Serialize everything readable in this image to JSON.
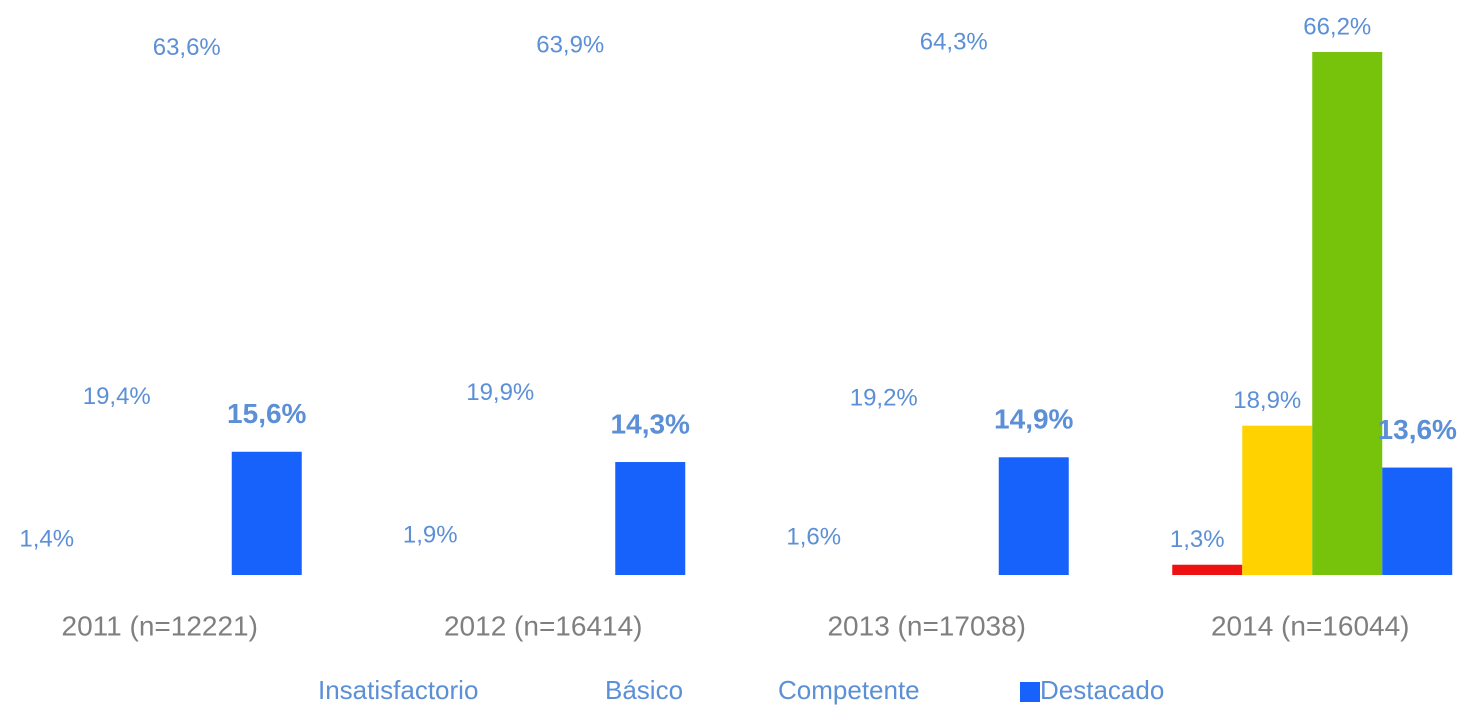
{
  "chart_data": {
    "type": "bar",
    "categories": [
      "2011 (n=12221)",
      "2012 (n=16414)",
      "2013 (n=17038)",
      "2014 (n=16044)"
    ],
    "series": [
      {
        "name": "Insatisfactorio",
        "color": "none",
        "point_colors": [
          "none",
          "none",
          "none",
          "#ee1111"
        ],
        "values": [
          1.4,
          1.9,
          1.6,
          1.3
        ],
        "value_labels": [
          "1,4%",
          "1,9%",
          "1,6%",
          "1,3%"
        ]
      },
      {
        "name": "Básico",
        "color": "none",
        "point_colors": [
          "none",
          "none",
          "none",
          "#ffd200"
        ],
        "values": [
          19.4,
          19.9,
          19.2,
          18.9
        ],
        "value_labels": [
          "19,4%",
          "19,9%",
          "19,2%",
          "18,9%"
        ]
      },
      {
        "name": "Competente",
        "color": "none",
        "point_colors": [
          "none",
          "none",
          "none",
          "#77c20a"
        ],
        "values": [
          63.6,
          63.9,
          64.3,
          66.2
        ],
        "value_labels": [
          "63,6%",
          "63,9%",
          "64,3%",
          "66,2%"
        ]
      },
      {
        "name": "Destacado",
        "color": "#1662fa",
        "point_colors": [
          "#1662fa",
          "#1662fa",
          "#1662fa",
          "#1662fa"
        ],
        "values": [
          15.6,
          14.3,
          14.9,
          13.6
        ],
        "value_labels": [
          "15,6%",
          "14,3%",
          "14,9%",
          "13,6%"
        ]
      }
    ],
    "ylim": [
      0,
      70
    ]
  }
}
